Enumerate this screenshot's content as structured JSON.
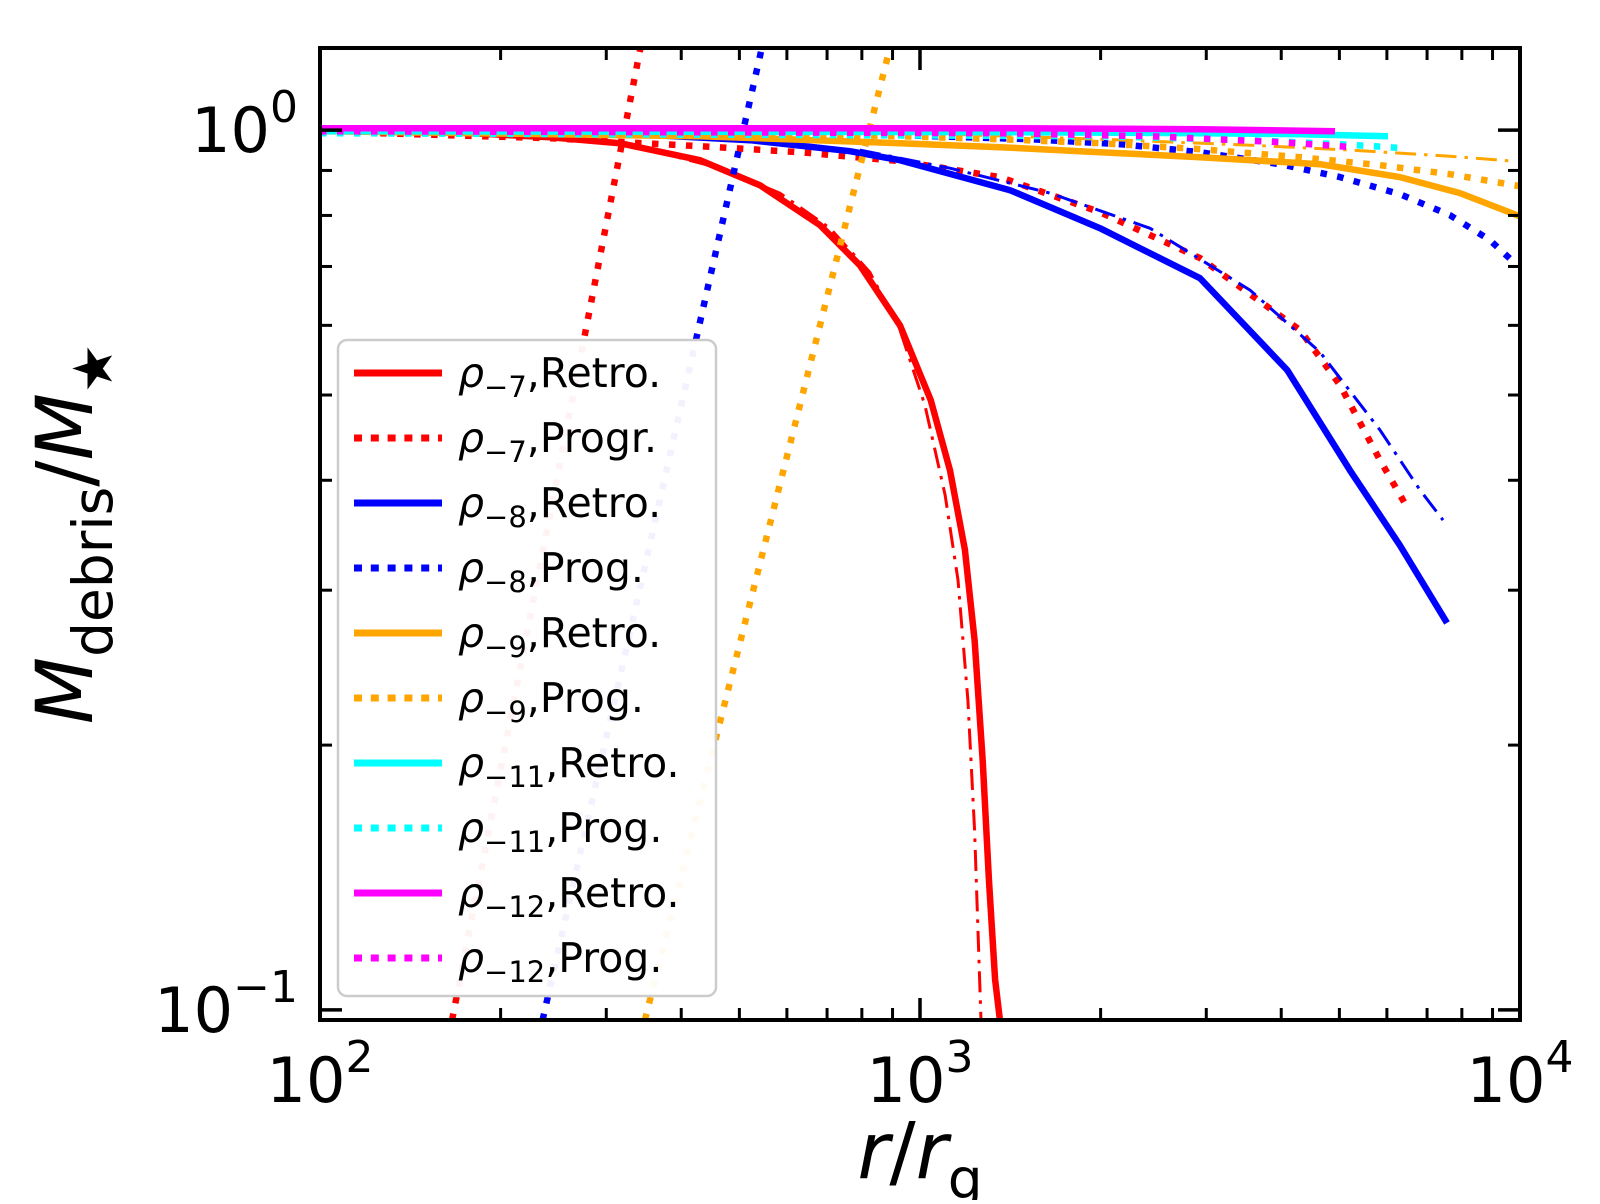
{
  "figure": {
    "background": "#ffffff",
    "plot_frame_color": "#000000"
  },
  "chart_data": {
    "type": "line",
    "title": "",
    "xlabel": "r/r_g",
    "ylabel": "M_debris/M_★",
    "xlabel_parts": [
      {
        "t": "r",
        "i": true
      },
      {
        "t": "/",
        "i": false
      },
      {
        "t": "r",
        "i": true
      },
      {
        "t": "g",
        "s": true
      }
    ],
    "ylabel_parts": [
      {
        "t": "M",
        "i": true
      },
      {
        "t": "debris",
        "s": true
      },
      {
        "t": "/",
        "i": false
      },
      {
        "t": "M",
        "i": true
      },
      {
        "t": "★",
        "s": true
      }
    ],
    "x_axis": {
      "scale": "log",
      "min": 100,
      "max": 10000,
      "major_ticks": [
        {
          "v": 100,
          "base": "10",
          "exp": "2"
        },
        {
          "v": 1000,
          "base": "10",
          "exp": "3"
        },
        {
          "v": 10000,
          "base": "10",
          "exp": "4"
        }
      ],
      "minor_tick_decades": [
        100,
        1000
      ]
    },
    "y_axis": {
      "scale": "log",
      "min": 0.0974,
      "max": 1.24,
      "major_ticks": [
        {
          "v": 1,
          "base": "10",
          "exp": "0"
        },
        {
          "v": 0.1,
          "base": "10",
          "exp": "−1"
        }
      ],
      "minor_tick_decades": [
        0.1
      ]
    },
    "legend": {
      "position": "lower left",
      "border_color": "#cccccc",
      "background": "#ffffff"
    },
    "colors": {
      "rho7": "#ff0000",
      "rho8": "#0000ff",
      "rho9": "#ffa500",
      "rho11": "#00ffff",
      "rho12": "#ff00ff"
    },
    "series": [
      {
        "name": "rho-7-prog-rising",
        "color": "#ff0000",
        "style": "dotted",
        "width": "thick",
        "legend_rank": null,
        "label": null,
        "points": [
          [
            166,
            0.0974
          ],
          [
            342,
            1.24
          ]
        ]
      },
      {
        "name": "rho-7-prog",
        "color": "#ff0000",
        "style": "dotted",
        "width": "thick",
        "legend_rank": 2,
        "label": "ρ−7,Progr.",
        "label_parts": [
          {
            "t": "ρ",
            "i": true
          },
          {
            "t": "−7",
            "s": true
          },
          {
            "t": ",Progr.",
            "i": false
          }
        ],
        "points": [
          [
            126,
            0.9922
          ],
          [
            242,
            0.9792
          ],
          [
            430,
            0.959
          ],
          [
            631,
            0.9441
          ],
          [
            926,
            0.9222
          ],
          [
            1359,
            0.8844
          ],
          [
            1995,
            0.8068
          ],
          [
            2929,
            0.7154
          ],
          [
            4299,
            0.5926
          ],
          [
            5012,
            0.5131
          ],
          [
            5843,
            0.4216
          ],
          [
            6481,
            0.3729
          ]
        ]
      },
      {
        "name": "rho-7-retro",
        "color": "#ff0000",
        "style": "solid",
        "width": "thick",
        "legend_rank": 1,
        "label": "ρ−7,Retro.",
        "label_parts": [
          {
            "t": "ρ",
            "i": true
          },
          {
            "t": "−7",
            "s": true
          },
          {
            "t": ",Retro.",
            "i": false
          }
        ],
        "points": [
          [
            100,
            1.0
          ],
          [
            165,
            0.9948
          ],
          [
            242,
            0.9818
          ],
          [
            316,
            0.9666
          ],
          [
            430,
            0.9245
          ],
          [
            541,
            0.866
          ],
          [
            681,
            0.78
          ],
          [
            794,
            0.7022
          ],
          [
            926,
            0.6
          ],
          [
            1042,
            0.4935
          ],
          [
            1122,
            0.4105
          ],
          [
            1188,
            0.3335
          ],
          [
            1233,
            0.2632
          ],
          [
            1272,
            0.192
          ],
          [
            1303,
            0.1401
          ],
          [
            1334,
            0.1083
          ],
          [
            1359,
            0.0974
          ]
        ]
      },
      {
        "name": "rho-7-analytic",
        "color": "#ff0000",
        "style": "dashdot",
        "width": "thin",
        "legend_rank": null,
        "label": null,
        "points": [
          [
            355,
            0.9491
          ],
          [
            464,
            0.9053
          ],
          [
            584,
            0.8482
          ],
          [
            708,
            0.7736
          ],
          [
            825,
            0.6894
          ],
          [
            926,
            0.5926
          ],
          [
            1019,
            0.487
          ],
          [
            1101,
            0.3849
          ],
          [
            1157,
            0.3081
          ],
          [
            1202,
            0.2249
          ],
          [
            1233,
            0.1599
          ],
          [
            1264,
            0.0974
          ]
        ]
      },
      {
        "name": "rho-8-prog-rising",
        "color": "#0000ff",
        "style": "dotted",
        "width": "thick",
        "legend_rank": null,
        "label": null,
        "points": [
          [
            235,
            0.0974
          ],
          [
            545,
            1.24
          ]
        ]
      },
      {
        "name": "rho-8-prog",
        "color": "#0000ff",
        "style": "dotted",
        "width": "thick",
        "legend_rank": 4,
        "label": "ρ−8,Prog.",
        "label_parts": [
          {
            "t": "ρ",
            "i": true
          },
          {
            "t": "−8",
            "s": true
          },
          {
            "t": ",Prog.",
            "i": false
          }
        ],
        "points": [
          [
            100,
            1.0026
          ],
          [
            430,
            0.9948
          ],
          [
            926,
            0.987
          ],
          [
            1526,
            0.9768
          ],
          [
            2158,
            0.9641
          ],
          [
            2929,
            0.9441
          ],
          [
            3991,
            0.9147
          ],
          [
            5012,
            0.8844
          ],
          [
            6310,
            0.8457
          ],
          [
            7645,
            0.8005
          ],
          [
            8913,
            0.7499
          ],
          [
            9886,
            0.7023
          ]
        ]
      },
      {
        "name": "rho-8-retro",
        "color": "#0000ff",
        "style": "solid",
        "width": "thick",
        "legend_rank": 3,
        "label": "ρ−8,Retro.",
        "label_parts": [
          {
            "t": "ρ",
            "i": true
          },
          {
            "t": "−8",
            "s": true
          },
          {
            "t": ",Retro.",
            "i": false
          }
        ],
        "points": [
          [
            100,
            1.0026
          ],
          [
            293,
            0.9948
          ],
          [
            521,
            0.9742
          ],
          [
            764,
            0.9466
          ],
          [
            926,
            0.9245
          ],
          [
            1413,
            0.8547
          ],
          [
            1995,
            0.7737
          ],
          [
            2929,
            0.6788
          ],
          [
            4094,
            0.5336
          ],
          [
            5208,
            0.4105
          ],
          [
            6310,
            0.3372
          ],
          [
            7556,
            0.2754
          ]
        ]
      },
      {
        "name": "rho-8-analytic",
        "color": "#0000ff",
        "style": "dashdot",
        "width": "thin",
        "legend_rank": null,
        "label": null,
        "points": [
          [
            794,
            0.9491
          ],
          [
            1122,
            0.9053
          ],
          [
            1647,
            0.8482
          ],
          [
            2418,
            0.7736
          ],
          [
            3548,
            0.658
          ],
          [
            4642,
            0.5594
          ],
          [
            5843,
            0.4561
          ],
          [
            6813,
            0.3899
          ],
          [
            7441,
            0.3604
          ]
        ]
      },
      {
        "name": "rho-9-prog-rising",
        "color": "#ffa500",
        "style": "dotted",
        "width": "thick",
        "legend_rank": null,
        "label": null,
        "points": [
          [
            348,
            0.0974
          ],
          [
            891,
            1.24
          ]
        ]
      },
      {
        "name": "rho-9-prog",
        "color": "#ffa500",
        "style": "dotted",
        "width": "thick",
        "legend_rank": 6,
        "label": "ρ−9,Prog.",
        "label_parts": [
          {
            "t": "ρ",
            "i": true
          },
          {
            "t": "−9",
            "s": true
          },
          {
            "t": ",Prog.",
            "i": false
          }
        ],
        "points": [
          [
            355,
            0.9974
          ],
          [
            926,
            0.9844
          ],
          [
            1359,
            0.9768
          ],
          [
            1995,
            0.9666
          ],
          [
            2929,
            0.9516
          ],
          [
            4299,
            0.9318
          ],
          [
            5843,
            0.9124
          ],
          [
            7645,
            0.8913
          ],
          [
            10000,
            0.8636
          ]
        ]
      },
      {
        "name": "rho-9-retro",
        "color": "#ffa500",
        "style": "solid",
        "width": "thick",
        "legend_rank": 5,
        "label": "ρ−9,Retro.",
        "label_parts": [
          {
            "t": "ρ",
            "i": true
          },
          {
            "t": "−9",
            "s": true
          },
          {
            "t": ",Retro.",
            "i": false
          }
        ],
        "points": [
          [
            100,
            0.9974
          ],
          [
            430,
            0.9844
          ],
          [
            926,
            0.9666
          ],
          [
            1359,
            0.9565
          ],
          [
            1995,
            0.9441
          ],
          [
            2929,
            0.9318
          ],
          [
            4642,
            0.9148
          ],
          [
            6310,
            0.8844
          ],
          [
            7943,
            0.8482
          ],
          [
            10000,
            0.7983
          ]
        ]
      },
      {
        "name": "rho-9-analytic",
        "color": "#ffa500",
        "style": "dashdot",
        "width": "thin",
        "legend_rank": null,
        "label": null,
        "points": [
          [
            1122,
            0.9896
          ],
          [
            1995,
            0.9768
          ],
          [
            3548,
            0.9615
          ],
          [
            5208,
            0.9491
          ],
          [
            7645,
            0.9343
          ],
          [
            9772,
            0.9221
          ]
        ]
      },
      {
        "name": "rho-11-prog",
        "color": "#00ffff",
        "style": "dotted",
        "width": "thick",
        "legend_rank": 8,
        "label": "ρ−11,Prog.",
        "label_parts": [
          {
            "t": "ρ",
            "i": true
          },
          {
            "t": "−11",
            "s": true
          },
          {
            "t": ",Prog.",
            "i": false
          }
        ],
        "points": [
          [
            100,
            0.9922
          ],
          [
            1995,
            0.9844
          ],
          [
            3548,
            0.9742
          ],
          [
            5012,
            0.9641
          ],
          [
            6432,
            0.954
          ]
        ]
      },
      {
        "name": "rho-11-retro",
        "color": "#00ffff",
        "style": "solid",
        "width": "thick",
        "legend_rank": 7,
        "label": "ρ−11,Retro.",
        "label_parts": [
          {
            "t": "ρ",
            "i": true
          },
          {
            "t": "−11",
            "s": true
          },
          {
            "t": ",Retro.",
            "i": false
          }
        ],
        "points": [
          [
            100,
            0.9974
          ],
          [
            1359,
            0.9948
          ],
          [
            2929,
            0.9922
          ],
          [
            4299,
            0.9896
          ],
          [
            6026,
            0.9844
          ]
        ]
      },
      {
        "name": "rho-12-prog",
        "color": "#ff00ff",
        "style": "dotted",
        "width": "thick",
        "legend_rank": 10,
        "label": "ρ−12,Prog.",
        "label_parts": [
          {
            "t": "ρ",
            "i": true
          },
          {
            "t": "−12",
            "s": true
          },
          {
            "t": ",Prog.",
            "i": false
          }
        ],
        "points": [
          [
            100,
            0.9974
          ],
          [
            1359,
            0.9922
          ],
          [
            2418,
            0.9844
          ],
          [
            3991,
            0.9691
          ],
          [
            5248,
            0.9566
          ]
        ]
      },
      {
        "name": "rho-12-retro",
        "color": "#ff00ff",
        "style": "solid",
        "width": "thick",
        "legend_rank": 9,
        "label": "ρ−12,Retro.",
        "label_parts": [
          {
            "t": "ρ",
            "i": true
          },
          {
            "t": "−12",
            "s": true
          },
          {
            "t": ",Retro.",
            "i": false
          }
        ],
        "points": [
          [
            100,
            1.0052
          ],
          [
            1359,
            1.0052
          ],
          [
            2929,
            1.0026
          ],
          [
            4917,
            0.9974
          ]
        ]
      }
    ]
  }
}
